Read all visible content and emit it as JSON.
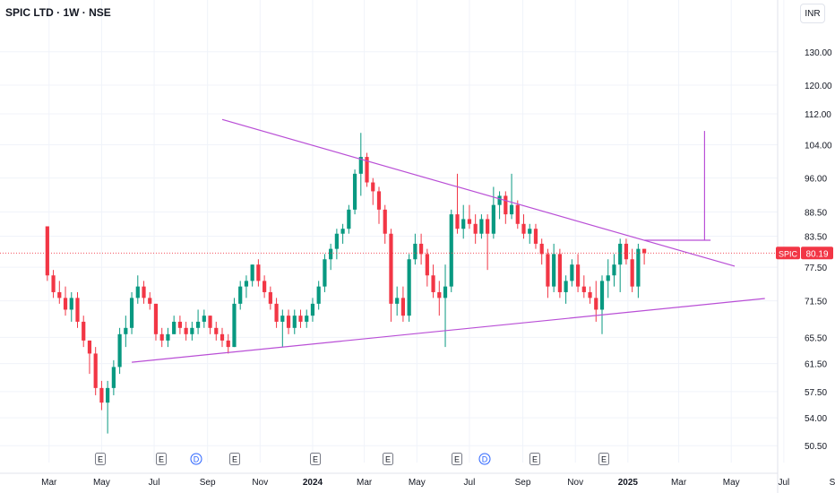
{
  "header": {
    "title": "SPIC LTD · 1W · NSE",
    "currency": "INR"
  },
  "price_tag": {
    "symbol": "SPIC",
    "value": "80.19"
  },
  "colors": {
    "up": "#089981",
    "down": "#f23645",
    "trendline": "#b94fd6",
    "grid": "#f0f3fa",
    "axis_text": "#131722"
  },
  "chart_data": {
    "type": "candlestick",
    "title": "SPIC LTD · 1W · NSE",
    "y_axis": {
      "scale": "log",
      "ticks": [
        50.5,
        54.0,
        57.5,
        61.5,
        65.5,
        71.5,
        77.5,
        83.5,
        88.5,
        96.0,
        104.0,
        112.0,
        120.0,
        130.0
      ],
      "tick_labels": [
        "50.50",
        "54.00",
        "57.50",
        "61.50",
        "65.50",
        "71.50",
        "77.50",
        "83.50",
        "88.50",
        "96.00",
        "104.00",
        "112.00",
        "120.00",
        "130.00"
      ],
      "range": [
        48.5,
        138
      ]
    },
    "x_axis": {
      "tick_labels": [
        "Mar",
        "May",
        "Jul",
        "Sep",
        "Nov",
        "2024",
        "Mar",
        "May",
        "Jul",
        "Sep",
        "Nov",
        "2025",
        "Mar",
        "May",
        "Jul",
        "Sep"
      ],
      "bold_labels": [
        "2024",
        "2025"
      ]
    },
    "last_price": 80.19,
    "event_markers": [
      "E",
      "E",
      "D",
      "E",
      "E",
      "E",
      "E",
      "D",
      "E",
      "E"
    ],
    "candles": [
      [
        85.5,
        85.5,
        75,
        76
      ],
      [
        76,
        77,
        72,
        73
      ],
      [
        73,
        75,
        71,
        72
      ],
      [
        72,
        74,
        69,
        70
      ],
      [
        70,
        73,
        68,
        72
      ],
      [
        72,
        73,
        67,
        68
      ],
      [
        68,
        69,
        64,
        65
      ],
      [
        65,
        65,
        60,
        63
      ],
      [
        63,
        64,
        57,
        58
      ],
      [
        58,
        59,
        55,
        56
      ],
      [
        56,
        59,
        52,
        58
      ],
      [
        58,
        62,
        57,
        61
      ],
      [
        61,
        67,
        60,
        66
      ],
      [
        66,
        69,
        64,
        67
      ],
      [
        67,
        73,
        66,
        72
      ],
      [
        72,
        76,
        71,
        74
      ],
      [
        74,
        75,
        71,
        72
      ],
      [
        72,
        73,
        70,
        71
      ],
      [
        71,
        71,
        65,
        66
      ],
      [
        66,
        67,
        64,
        65
      ],
      [
        65,
        67,
        64,
        66
      ],
      [
        66,
        69,
        66,
        68
      ],
      [
        68,
        69,
        66,
        67
      ],
      [
        67,
        68,
        65,
        66
      ],
      [
        66,
        68,
        65,
        67
      ],
      [
        67,
        70,
        66,
        68
      ],
      [
        68,
        70,
        67,
        69
      ],
      [
        69,
        69,
        66,
        67
      ],
      [
        67,
        68,
        65,
        66
      ],
      [
        66,
        67,
        64,
        65
      ],
      [
        65,
        66,
        63,
        64
      ],
      [
        64,
        72,
        64,
        71
      ],
      [
        71,
        75,
        70,
        74
      ],
      [
        74,
        76,
        72,
        75
      ],
      [
        75,
        78,
        74,
        78
      ],
      [
        78,
        79,
        74,
        75
      ],
      [
        75,
        76,
        72,
        73
      ],
      [
        73,
        74,
        70,
        71
      ],
      [
        71,
        72,
        67,
        68
      ],
      [
        68,
        70,
        64,
        69
      ],
      [
        69,
        70,
        66,
        67
      ],
      [
        67,
        70,
        66,
        69
      ],
      [
        69,
        70,
        67,
        68
      ],
      [
        68,
        70,
        67,
        69
      ],
      [
        69,
        72,
        68,
        71
      ],
      [
        71,
        75,
        70,
        74
      ],
      [
        74,
        80,
        73,
        79
      ],
      [
        79,
        82,
        77,
        81
      ],
      [
        81,
        85,
        79,
        84
      ],
      [
        84,
        86,
        82,
        85
      ],
      [
        85,
        90,
        84,
        89
      ],
      [
        89,
        98,
        88,
        97
      ],
      [
        97,
        107,
        92,
        101
      ],
      [
        101,
        102,
        94,
        95
      ],
      [
        95,
        96,
        90,
        93
      ],
      [
        93,
        94,
        86,
        89
      ],
      [
        89,
        90,
        82,
        84
      ],
      [
        84,
        85,
        68,
        71
      ],
      [
        71,
        74,
        69,
        72
      ],
      [
        72,
        74,
        68,
        69
      ],
      [
        69,
        80,
        68,
        79
      ],
      [
        79,
        84,
        78,
        82
      ],
      [
        82,
        84,
        78,
        80
      ],
      [
        80,
        81,
        74,
        76
      ],
      [
        76,
        78,
        72,
        73
      ],
      [
        73,
        75,
        69,
        72
      ],
      [
        72,
        78,
        64,
        74
      ],
      [
        74,
        89,
        73,
        88
      ],
      [
        88,
        97,
        84,
        85
      ],
      [
        85,
        90,
        83,
        87
      ],
      [
        87,
        90,
        85,
        86
      ],
      [
        86,
        88,
        82,
        84
      ],
      [
        84,
        88,
        83,
        87
      ],
      [
        87,
        88,
        77,
        84
      ],
      [
        84,
        94,
        83,
        90
      ],
      [
        90,
        93,
        87,
        92
      ],
      [
        92,
        93,
        86,
        88
      ],
      [
        88,
        97,
        87,
        90
      ],
      [
        90,
        91,
        85,
        86
      ],
      [
        86,
        88,
        83,
        84
      ],
      [
        84,
        86,
        82,
        85
      ],
      [
        85,
        86,
        81,
        82
      ],
      [
        82,
        83,
        78,
        80
      ],
      [
        80,
        81,
        72,
        74
      ],
      [
        74,
        82,
        73,
        80
      ],
      [
        80,
        81,
        72,
        73
      ],
      [
        73,
        76,
        71,
        75
      ],
      [
        75,
        79,
        74,
        78
      ],
      [
        78,
        80,
        73,
        74
      ],
      [
        74,
        76,
        72,
        73
      ],
      [
        73,
        74,
        71,
        72
      ],
      [
        72,
        75,
        68,
        70
      ],
      [
        70,
        76,
        66,
        75
      ],
      [
        75,
        79,
        72,
        76
      ],
      [
        76,
        80,
        74,
        78
      ],
      [
        78,
        83,
        73,
        82
      ],
      [
        82,
        83,
        78,
        79
      ],
      [
        79,
        81,
        73,
        74
      ],
      [
        74,
        82,
        72,
        81
      ],
      [
        81,
        81,
        78,
        80.19
      ]
    ],
    "trendlines": [
      {
        "name": "upper-descending",
        "from": {
          "x": "2023-09-18",
          "y": 110.5
        },
        "to": {
          "x": "2025-05-05",
          "y": 77.7
        }
      },
      {
        "name": "lower-ascending",
        "from": {
          "x": "2023-06-05",
          "y": 61.7
        },
        "to": {
          "x": "2025-06-09",
          "y": 71.9
        }
      },
      {
        "name": "breakout-level",
        "from": {
          "x": "2025-01-20",
          "y": 82.7
        },
        "to": {
          "x": "2025-04-07",
          "y": 82.7
        }
      },
      {
        "name": "vertical-target",
        "from": {
          "x": "2025-03-31",
          "y": 82.7
        },
        "to": {
          "x": "2025-03-31",
          "y": 107.5
        }
      }
    ]
  }
}
